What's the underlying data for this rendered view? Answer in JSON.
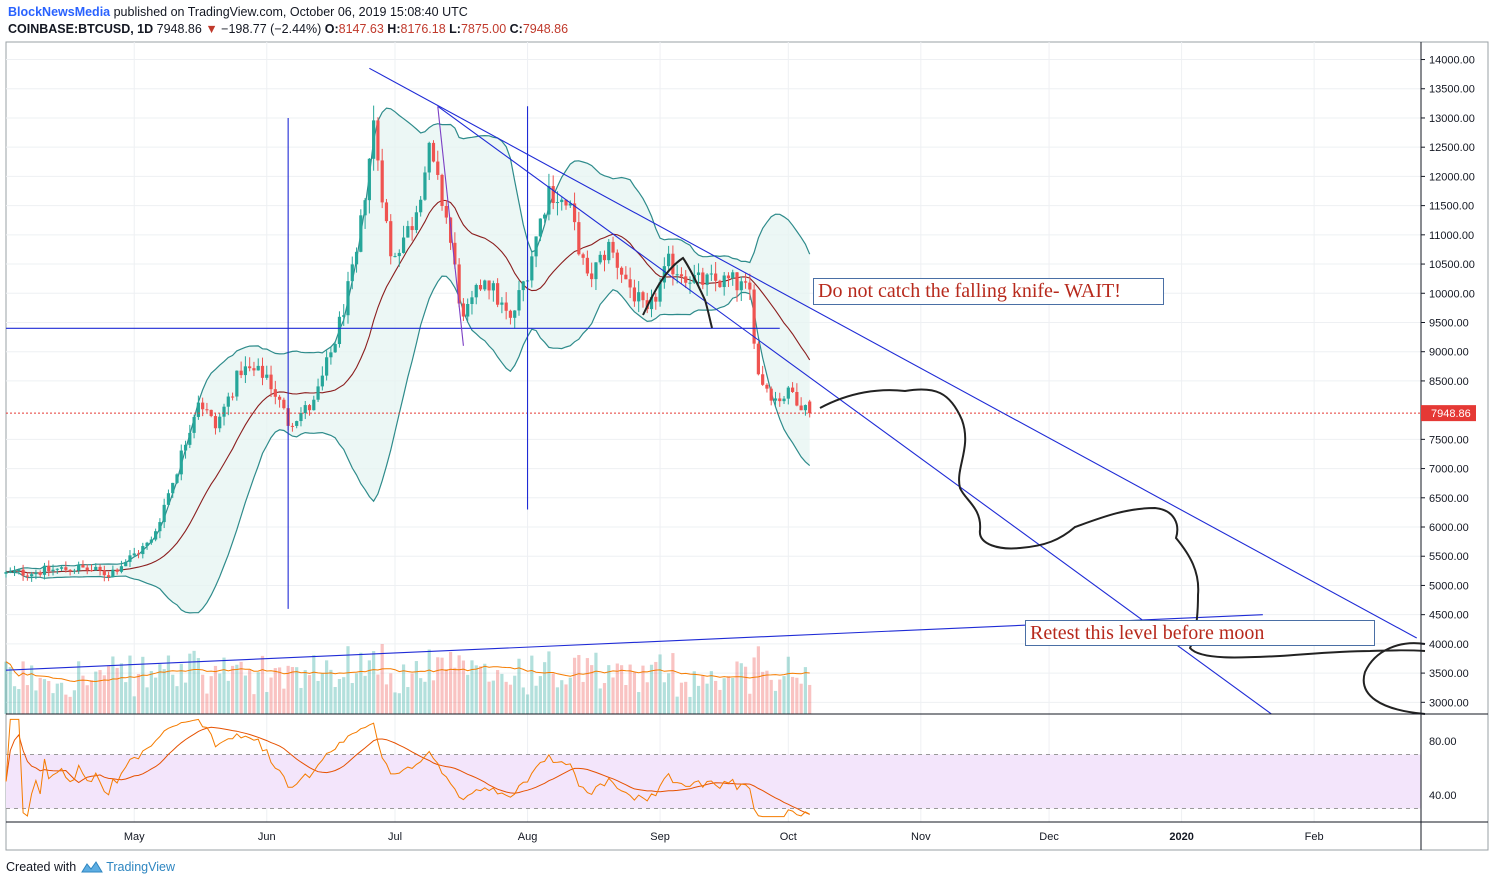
{
  "header": {
    "brand": "BlockNewsMedia",
    "published": "published on TradingView.com, October 06, 2019 15:08:40 UTC",
    "symbol": "COINBASE:BTCUSD, 1D",
    "last": "7948.86",
    "change": "−198.77 (−2.44%)",
    "o_label": "O:",
    "o": "8147.63",
    "h_label": "H:",
    "h": "8176.18",
    "l_label": "L:",
    "l": "7875.00",
    "c_label": "C:",
    "c": "7948.86",
    "down_arrow": "▼"
  },
  "annotations": {
    "falling_knife": "Do not catch the falling knife- WAIT!",
    "retest": "Retest this level before moon"
  },
  "price_label": "7948.86",
  "footer": {
    "created_with": "Created with",
    "brand": "TradingView"
  },
  "colors": {
    "bull": "#26a69a",
    "bear": "#ef5350",
    "band": "#2e8b8b",
    "band_fill": "#e6f4f1",
    "basis": "#8b1e1e",
    "trend": "#1f2bd6",
    "rsi": "#f57c00",
    "rsi_fill": "#f3e5fb",
    "annotation_text": "#b7291c"
  },
  "chart_data": {
    "type": "candlestick",
    "symbol": "COINBASE:BTCUSD",
    "interval": "1D",
    "price_axis": {
      "ticks": [
        "14000.00",
        "13500.00",
        "13000.00",
        "12500.00",
        "12000.00",
        "11500.00",
        "11000.00",
        "10500.00",
        "10000.00",
        "9500.00",
        "9000.00",
        "8500.00",
        "7500.00",
        "7000.00",
        "6500.00",
        "6000.00",
        "5500.00",
        "5000.00",
        "4500.00",
        "4000.00",
        "3500.00",
        "3000.00"
      ],
      "range": [
        2800,
        14300
      ]
    },
    "time_axis": {
      "labels": [
        "May",
        "Jun",
        "Jul",
        "Aug",
        "Sep",
        "Oct",
        "Nov",
        "Dec",
        "2020",
        "Feb"
      ],
      "range": [
        "2019-04-01",
        "2020-02-26"
      ]
    },
    "rsi_axis": {
      "ticks": [
        "80.00",
        "40.00"
      ],
      "bands": [
        70,
        30
      ]
    },
    "close_anchors": [
      {
        "date": "2019-04-01",
        "close": 5200
      },
      {
        "date": "2019-04-10",
        "close": 5250
      },
      {
        "date": "2019-04-18",
        "close": 5300
      },
      {
        "date": "2019-04-25",
        "close": 5200
      },
      {
        "date": "2019-05-05",
        "close": 5750
      },
      {
        "date": "2019-05-11",
        "close": 7000
      },
      {
        "date": "2019-05-16",
        "close": 8200
      },
      {
        "date": "2019-05-20",
        "close": 7700
      },
      {
        "date": "2019-05-26",
        "close": 8700
      },
      {
        "date": "2019-06-01",
        "close": 8600
      },
      {
        "date": "2019-06-06",
        "close": 7800
      },
      {
        "date": "2019-06-12",
        "close": 8100
      },
      {
        "date": "2019-06-17",
        "close": 9200
      },
      {
        "date": "2019-06-22",
        "close": 10600
      },
      {
        "date": "2019-06-26",
        "close": 12900
      },
      {
        "date": "2019-06-30",
        "close": 10600
      },
      {
        "date": "2019-07-05",
        "close": 11200
      },
      {
        "date": "2019-07-09",
        "close": 12400
      },
      {
        "date": "2019-07-13",
        "close": 11300
      },
      {
        "date": "2019-07-17",
        "close": 9500
      },
      {
        "date": "2019-07-22",
        "close": 10300
      },
      {
        "date": "2019-07-28",
        "close": 9500
      },
      {
        "date": "2019-08-01",
        "close": 10400
      },
      {
        "date": "2019-08-06",
        "close": 11800
      },
      {
        "date": "2019-08-11",
        "close": 11400
      },
      {
        "date": "2019-08-15",
        "close": 10200
      },
      {
        "date": "2019-08-20",
        "close": 10800
      },
      {
        "date": "2019-08-25",
        "close": 10100
      },
      {
        "date": "2019-08-29",
        "close": 9600
      },
      {
        "date": "2019-09-03",
        "close": 10500
      },
      {
        "date": "2019-09-10",
        "close": 10200
      },
      {
        "date": "2019-09-18",
        "close": 10200
      },
      {
        "date": "2019-09-22",
        "close": 10000
      },
      {
        "date": "2019-09-24",
        "close": 8600
      },
      {
        "date": "2019-09-28",
        "close": 8200
      },
      {
        "date": "2019-10-02",
        "close": 8300
      },
      {
        "date": "2019-10-06",
        "close": 7949
      }
    ],
    "last_bar": {
      "date": "2019-10-06",
      "open": 8147.63,
      "high": 8176.18,
      "low": 7875.0,
      "close": 7948.86
    },
    "indicators": [
      "Bollinger Bands (20)",
      "MA",
      "Volume",
      "RSI"
    ],
    "drawings": {
      "upper_trendline": [
        {
          "date": "2019-06-25",
          "price": 13850
        },
        {
          "date": "2020-02-25",
          "price": 4100
        }
      ],
      "lower_trendline": [
        {
          "date": "2019-07-11",
          "price": 13200
        },
        {
          "date": "2020-01-22",
          "price": 2800
        }
      ],
      "horizontal_line": {
        "price": 9400,
        "from": "2019-04-01",
        "to": "2019-09-29"
      },
      "vertical_lines": [
        "2019-06-06",
        "2019-08-01"
      ],
      "long_support_line": [
        {
          "date": "2019-04-01",
          "price": 3550
        },
        {
          "date": "2020-01-20",
          "price": 4500
        }
      ]
    }
  }
}
